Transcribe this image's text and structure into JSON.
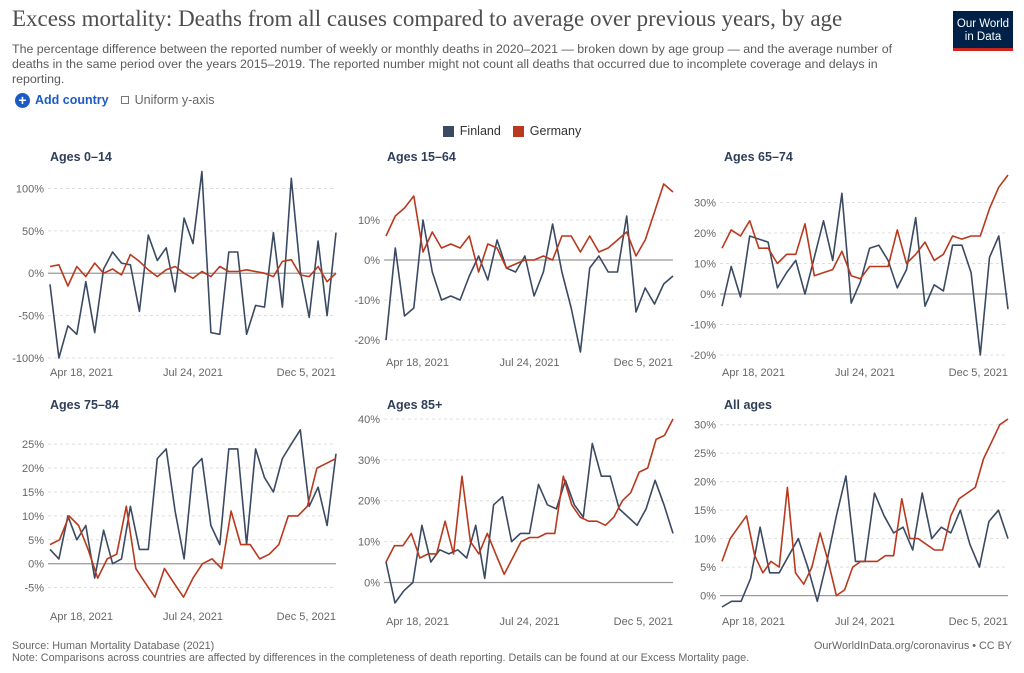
{
  "header": {
    "title": "Excess mortality: Deaths from all causes compared to average over previous years, by age",
    "subtitle": "The percentage difference between the reported number of weekly or monthly deaths in 2020–2021 — broken down by age group — and the average number of deaths in the same period over the years 2015–2019. The reported number might not count all deaths that occurred due to incomplete coverage and delays in reporting.",
    "logo_line1": "Our World",
    "logo_line2": "in Data"
  },
  "controls": {
    "add_country_label": "Add country",
    "uniform_label": "Uniform y-axis"
  },
  "colors": {
    "finland": "#3b4a63",
    "germany": "#b8391d"
  },
  "legend": [
    {
      "name": "Finland",
      "color": "#3b4a63"
    },
    {
      "name": "Germany",
      "color": "#b8391d"
    }
  ],
  "footer": {
    "source": "Source: Human Mortality Database (2021)",
    "note": "Note: Comparisons across countries are affected by differences in the completeness of death reporting. Details can be found at our Excess Mortality page.",
    "credit": "OurWorldInData.org/coronavirus • CC BY"
  },
  "chart_data": [
    {
      "type": "line",
      "title": "Ages 0–14",
      "x_tick_labels": [
        "Apr 18, 2021",
        "Jul 24, 2021",
        "Dec 5, 2021"
      ],
      "y_ticks": [
        -100,
        -50,
        0,
        50,
        100
      ],
      "y_tick_labels": [
        "-100%",
        "-50%",
        "0%",
        "50%",
        "100%"
      ],
      "ylim": [
        -100,
        110
      ],
      "series": [
        {
          "name": "Finland",
          "values": [
            -13,
            -100,
            -62,
            -72,
            -10,
            -70,
            5,
            25,
            12,
            10,
            -45,
            45,
            15,
            30,
            -22,
            65,
            35,
            120,
            -70,
            -72,
            25,
            25,
            -72,
            -38,
            -40,
            48,
            -40,
            112,
            2,
            -52,
            38,
            -50,
            48
          ]
        },
        {
          "name": "Germany",
          "values": [
            8,
            10,
            -15,
            8,
            -4,
            12,
            0,
            5,
            -2,
            22,
            14,
            4,
            -4,
            4,
            8,
            0,
            -6,
            2,
            -4,
            8,
            2,
            2,
            4,
            2,
            0,
            -4,
            14,
            16,
            -2,
            -4,
            8,
            -10,
            0
          ]
        }
      ]
    },
    {
      "type": "line",
      "title": "Ages 15–64",
      "x_tick_labels": [
        "Apr 18, 2021",
        "Jul 24, 2021",
        "Dec 5, 2021"
      ],
      "y_ticks": [
        -20,
        -10,
        0,
        10
      ],
      "y_tick_labels": [
        "-20%",
        "-10%",
        "0%",
        "10%"
      ],
      "ylim": [
        -22,
        20
      ],
      "series": [
        {
          "name": "Finland",
          "values": [
            -20,
            3,
            -14,
            -12,
            10,
            -3,
            -10,
            -9,
            -10,
            -4,
            1,
            -5,
            5,
            -2,
            -3,
            1,
            -9,
            -3,
            9,
            -3,
            -12,
            -23,
            -2,
            1,
            -3,
            -3,
            11,
            -13,
            -7,
            -11,
            -6,
            -4
          ]
        },
        {
          "name": "Germany",
          "values": [
            6,
            11,
            13,
            16,
            2,
            7,
            3,
            4,
            3,
            6,
            -3,
            4,
            3,
            -2,
            -1,
            0,
            0,
            1,
            0,
            6,
            6,
            2,
            6,
            2,
            3,
            5,
            7,
            1,
            5,
            12,
            19,
            17
          ]
        }
      ]
    },
    {
      "type": "line",
      "title": "Ages 65–74",
      "x_tick_labels": [
        "Apr 18, 2021",
        "Jul 24, 2021",
        "Dec 5, 2021"
      ],
      "y_ticks": [
        -20,
        -10,
        0,
        10,
        20,
        30
      ],
      "y_tick_labels": [
        "-20%",
        "-10%",
        "0%",
        "10%",
        "20%",
        "30%"
      ],
      "ylim": [
        -21,
        40
      ],
      "series": [
        {
          "name": "Finland",
          "values": [
            -4,
            9,
            -1,
            19,
            18,
            17,
            2,
            7,
            11,
            0,
            12,
            24,
            11,
            33,
            -3,
            4,
            15,
            16,
            11,
            2,
            8,
            25,
            -4,
            3,
            1,
            16,
            16,
            7,
            -20,
            12,
            19,
            -5
          ]
        },
        {
          "name": "Germany",
          "values": [
            15,
            21,
            19,
            24,
            15,
            15,
            10,
            13,
            13,
            23,
            6,
            7,
            8,
            14,
            6,
            5,
            9,
            9,
            9,
            21,
            10,
            13,
            17,
            11,
            13,
            19,
            18,
            19,
            19,
            28,
            35,
            39
          ]
        }
      ]
    },
    {
      "type": "line",
      "title": "Ages 75–84",
      "x_tick_labels": [
        "Apr 18, 2021",
        "Jul 24, 2021",
        "Dec 5, 2021"
      ],
      "y_ticks": [
        -5,
        0,
        5,
        10,
        15,
        20,
        25
      ],
      "y_tick_labels": [
        "-5%",
        "0%",
        "5%",
        "10%",
        "15%",
        "20%",
        "25%"
      ],
      "ylim": [
        -8,
        29
      ],
      "series": [
        {
          "name": "Finland",
          "values": [
            3,
            1,
            10,
            5,
            8,
            -3,
            7,
            0,
            1,
            12,
            3,
            3,
            22,
            24,
            11,
            1,
            20,
            22,
            8,
            4,
            24,
            24,
            4,
            24,
            18,
            15,
            22,
            25,
            28,
            12,
            16,
            8,
            23
          ]
        },
        {
          "name": "Germany",
          "values": [
            4,
            5,
            10,
            8,
            3,
            -3,
            1,
            2,
            12,
            -1,
            -4,
            -7,
            -1,
            -4,
            -7,
            -3,
            0,
            1,
            -1,
            11,
            4,
            4,
            1,
            2,
            4,
            10,
            10,
            12,
            20,
            21,
            22
          ]
        }
      ]
    },
    {
      "type": "line",
      "title": "Ages 85+",
      "x_tick_labels": [
        "Apr 18, 2021",
        "Jul 24, 2021",
        "Dec 5, 2021"
      ],
      "y_ticks": [
        0,
        10,
        20,
        30,
        40
      ],
      "y_tick_labels": [
        "0%",
        "10%",
        "20%",
        "30%",
        "40%"
      ],
      "ylim": [
        -6,
        40
      ],
      "series": [
        {
          "name": "Finland",
          "values": [
            5,
            -5,
            -2,
            0,
            14,
            5,
            8,
            7,
            8,
            6,
            14,
            1,
            19,
            21,
            10,
            12,
            12,
            24,
            19,
            18,
            25,
            19,
            16,
            34,
            26,
            26,
            18,
            16,
            14,
            18,
            25,
            19,
            12
          ]
        },
        {
          "name": "Germany",
          "values": [
            5,
            9,
            9,
            12,
            6,
            7,
            7,
            15,
            7,
            26,
            10,
            7,
            12,
            7,
            2,
            6,
            10,
            11,
            11,
            12,
            12,
            26,
            19,
            16,
            15,
            15,
            14,
            16,
            20,
            22,
            27,
            28,
            35,
            36,
            40
          ]
        }
      ]
    },
    {
      "type": "line",
      "title": "All ages",
      "x_tick_labels": [
        "Apr 18, 2021",
        "Jul 24, 2021",
        "Dec 5, 2021"
      ],
      "y_ticks": [
        0,
        5,
        10,
        15,
        20,
        25,
        30
      ],
      "y_tick_labels": [
        "0%",
        "5%",
        "10%",
        "15%",
        "20%",
        "25%",
        "30%"
      ],
      "ylim": [
        -2,
        31
      ],
      "series": [
        {
          "name": "Finland",
          "values": [
            -2,
            -1,
            -1,
            3,
            12,
            4,
            4,
            7,
            10,
            5,
            -1,
            6,
            14,
            21,
            6,
            6,
            18,
            14,
            11,
            12,
            8,
            18,
            10,
            12,
            11,
            15,
            9,
            5,
            13,
            15,
            10
          ]
        },
        {
          "name": "Germany",
          "values": [
            6,
            10,
            12,
            14,
            7,
            4,
            6,
            5,
            19,
            4,
            2,
            5,
            11,
            6,
            0,
            1,
            5,
            6,
            6,
            6,
            7,
            7,
            17,
            10,
            10,
            9,
            8,
            8,
            14,
            17,
            18,
            19,
            24,
            27,
            30,
            31
          ]
        }
      ]
    }
  ]
}
